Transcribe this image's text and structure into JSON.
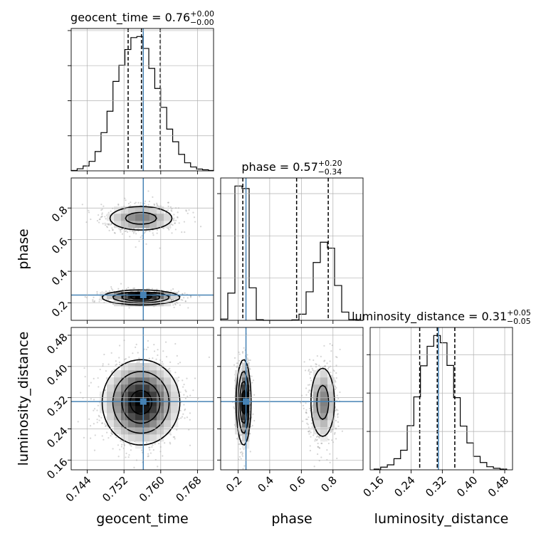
{
  "chart_data": {
    "type": "corner",
    "colors": {
      "truth": "#4682b4",
      "histogram": "#000000",
      "grid": "#b0b0b0",
      "points": "#888888"
    },
    "parameters": [
      {
        "name": "geocent_time",
        "axis_label": "geocent_time",
        "range": [
          0.7405,
          0.7715
        ],
        "ticks": [
          0.744,
          0.752,
          0.76,
          0.768
        ],
        "tick_labels": [
          "0.744",
          "0.752",
          "0.760",
          "0.768"
        ],
        "truth": 0.7562,
        "quantiles": [
          0.7529,
          0.7558,
          0.7599
        ],
        "title": {
          "prefix": "geocent_time = 0.76",
          "sup": "+0.00",
          "sub": "−0.00"
        },
        "hist_bins": [
          0.7405,
          0.7418,
          0.7431,
          0.7444,
          0.7457,
          0.747,
          0.7483,
          0.7496,
          0.7509,
          0.7522,
          0.7535,
          0.7548,
          0.7561,
          0.7574,
          0.7587,
          0.76,
          0.7613,
          0.7626,
          0.7639,
          0.7652,
          0.7665,
          0.7678,
          0.7691,
          0.7704,
          0.7715
        ],
        "hist_counts": [
          1,
          6,
          14,
          27,
          55,
          109,
          170,
          255,
          301,
          346,
          380,
          383,
          349,
          292,
          235,
          181,
          119,
          83,
          47,
          23,
          11,
          5,
          3,
          1
        ]
      },
      {
        "name": "phase",
        "axis_label": "phase",
        "range": [
          0.09,
          0.99
        ],
        "ticks": [
          0.2,
          0.4,
          0.6,
          0.8
        ],
        "tick_labels": [
          "0.2",
          "0.4",
          "0.6",
          "0.8"
        ],
        "truth": 0.25,
        "quantiles": [
          0.23,
          0.57,
          0.77
        ],
        "title": {
          "prefix": "phase = 0.57",
          "sup": "+0.20",
          "sub": "−0.34"
        },
        "hist_bins": [
          0.09,
          0.135,
          0.18,
          0.225,
          0.27,
          0.315,
          0.36,
          0.405,
          0.45,
          0.495,
          0.54,
          0.585,
          0.63,
          0.675,
          0.72,
          0.765,
          0.81,
          0.855,
          0.9,
          0.945,
          0.99
        ],
        "hist_counts": [
          6,
          129,
          636,
          624,
          154,
          3,
          0,
          0,
          0,
          0,
          2,
          29,
          135,
          274,
          370,
          342,
          165,
          39,
          4,
          0
        ]
      },
      {
        "name": "luminosity_distance",
        "axis_label": "luminosity_distance",
        "range": [
          0.135,
          0.5
        ],
        "ticks": [
          0.16,
          0.24,
          0.32,
          0.4,
          0.48
        ],
        "tick_labels": [
          "0.16",
          "0.24",
          "0.32",
          "0.40",
          "0.48"
        ],
        "truth": 0.31,
        "quantiles": [
          0.262,
          0.307,
          0.352
        ],
        "title": {
          "prefix": "luminosity_distance = 0.31",
          "sup": "+0.05",
          "sub": "−0.05"
        },
        "hist_bins": [
          0.145,
          0.162,
          0.179,
          0.196,
          0.213,
          0.23,
          0.247,
          0.264,
          0.281,
          0.298,
          0.315,
          0.332,
          0.349,
          0.366,
          0.383,
          0.4,
          0.417,
          0.434,
          0.451,
          0.468,
          0.485
        ],
        "hist_counts": [
          2,
          7,
          13,
          29,
          51,
          115,
          190,
          271,
          322,
          350,
          331,
          272,
          188,
          114,
          70,
          35,
          19,
          8,
          4,
          2
        ]
      }
    ],
    "contour_levels": [
      0.118,
      0.393,
      0.675,
      0.865
    ]
  }
}
